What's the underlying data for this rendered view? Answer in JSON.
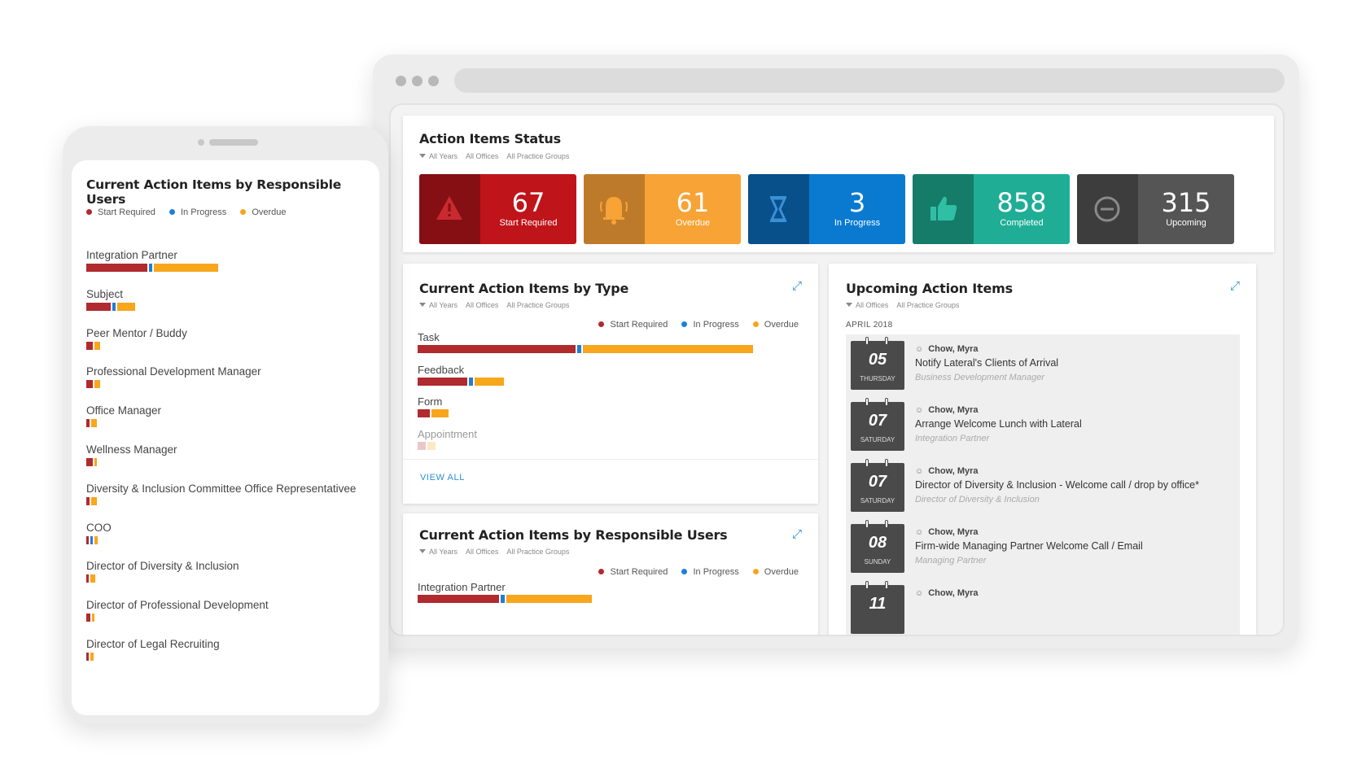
{
  "colors": {
    "start_required": "#b02a2e",
    "in_progress": "#1f7fd6",
    "overdue": "#f8a61c"
  },
  "legend": {
    "start_required": "Start Required",
    "in_progress": "In Progress",
    "overdue": "Overdue"
  },
  "filters": {
    "years": "All Years",
    "offices": "All Offices",
    "groups": "All Practice Groups"
  },
  "status": {
    "title": "Action Items Status",
    "tiles": [
      {
        "value": "67",
        "label": "Start Required",
        "icon": "warning-icon"
      },
      {
        "value": "61",
        "label": "Overdue",
        "icon": "bell-icon"
      },
      {
        "value": "3",
        "label": "In Progress",
        "icon": "hourglass-icon"
      },
      {
        "value": "858",
        "label": "Completed",
        "icon": "thumbs-up-icon"
      },
      {
        "value": "315",
        "label": "Upcoming",
        "icon": "minus-circle-icon"
      }
    ]
  },
  "by_type": {
    "title": "Current Action Items by Type",
    "view_all": "VIEW ALL",
    "rows": [
      {
        "label": "Task",
        "start_required": 38,
        "in_progress": 1,
        "overdue": 41
      },
      {
        "label": "Feedback",
        "start_required": 12,
        "in_progress": 1,
        "overdue": 7
      },
      {
        "label": "Form",
        "start_required": 3,
        "in_progress": 0,
        "overdue": 4
      },
      {
        "label": "Appointment",
        "start_required": 2,
        "in_progress": 0,
        "overdue": 2
      }
    ]
  },
  "by_users_desktop": {
    "title": "Current Action Items by Responsible Users",
    "rows": [
      {
        "label": "Integration Partner",
        "start_required": 20,
        "in_progress": 1,
        "overdue": 21
      }
    ]
  },
  "upcoming": {
    "title": "Upcoming Action Items",
    "month": "APRIL 2018",
    "items": [
      {
        "day": "05",
        "weekday": "THURSDAY",
        "person": "Chow, Myra",
        "task": "Notify Lateral's Clients of Arrival",
        "role": "Business Development Manager"
      },
      {
        "day": "07",
        "weekday": "SATURDAY",
        "person": "Chow, Myra",
        "task": "Arrange Welcome Lunch with Lateral",
        "role": "Integration Partner"
      },
      {
        "day": "07",
        "weekday": "SATURDAY",
        "person": "Chow, Myra",
        "task": "Director of Diversity & Inclusion - Welcome call / drop by office*",
        "role": "Director of Diversity & Inclusion"
      },
      {
        "day": "08",
        "weekday": "SUNDAY",
        "person": "Chow, Myra",
        "task": "Firm-wide Managing Partner Welcome Call / Email",
        "role": "Managing Partner"
      },
      {
        "day": "11",
        "weekday": "",
        "person": "Chow, Myra",
        "task": "",
        "role": ""
      }
    ]
  },
  "phone": {
    "title": "Current Action Items by Responsible Users",
    "rows": [
      {
        "label": "Integration Partner",
        "start_required": 20,
        "in_progress": 1,
        "overdue": 21
      },
      {
        "label": "Subject",
        "start_required": 8,
        "in_progress": 1,
        "overdue": 6
      },
      {
        "label": "Peer Mentor / Buddy",
        "start_required": 2,
        "in_progress": 0,
        "overdue": 2
      },
      {
        "label": "Professional Development Manager",
        "start_required": 2,
        "in_progress": 0,
        "overdue": 2
      },
      {
        "label": "Office Manager",
        "start_required": 1,
        "in_progress": 0,
        "overdue": 2
      },
      {
        "label": "Wellness Manager",
        "start_required": 2,
        "in_progress": 0,
        "overdue": 1
      },
      {
        "label": "Diversity & Inclusion Committee Office Representativee",
        "start_required": 1,
        "in_progress": 0,
        "overdue": 2
      },
      {
        "label": "COO",
        "start_required": 0.6,
        "in_progress": 0.6,
        "overdue": 1
      },
      {
        "label": "Director of Diversity & Inclusion",
        "start_required": 0.5,
        "in_progress": 0,
        "overdue": 1.5
      },
      {
        "label": "Director of Professional Development",
        "start_required": 1.3,
        "in_progress": 0,
        "overdue": 0.5
      },
      {
        "label": "Director of Legal Recruiting",
        "start_required": 0.6,
        "in_progress": 0,
        "overdue": 1
      }
    ]
  }
}
